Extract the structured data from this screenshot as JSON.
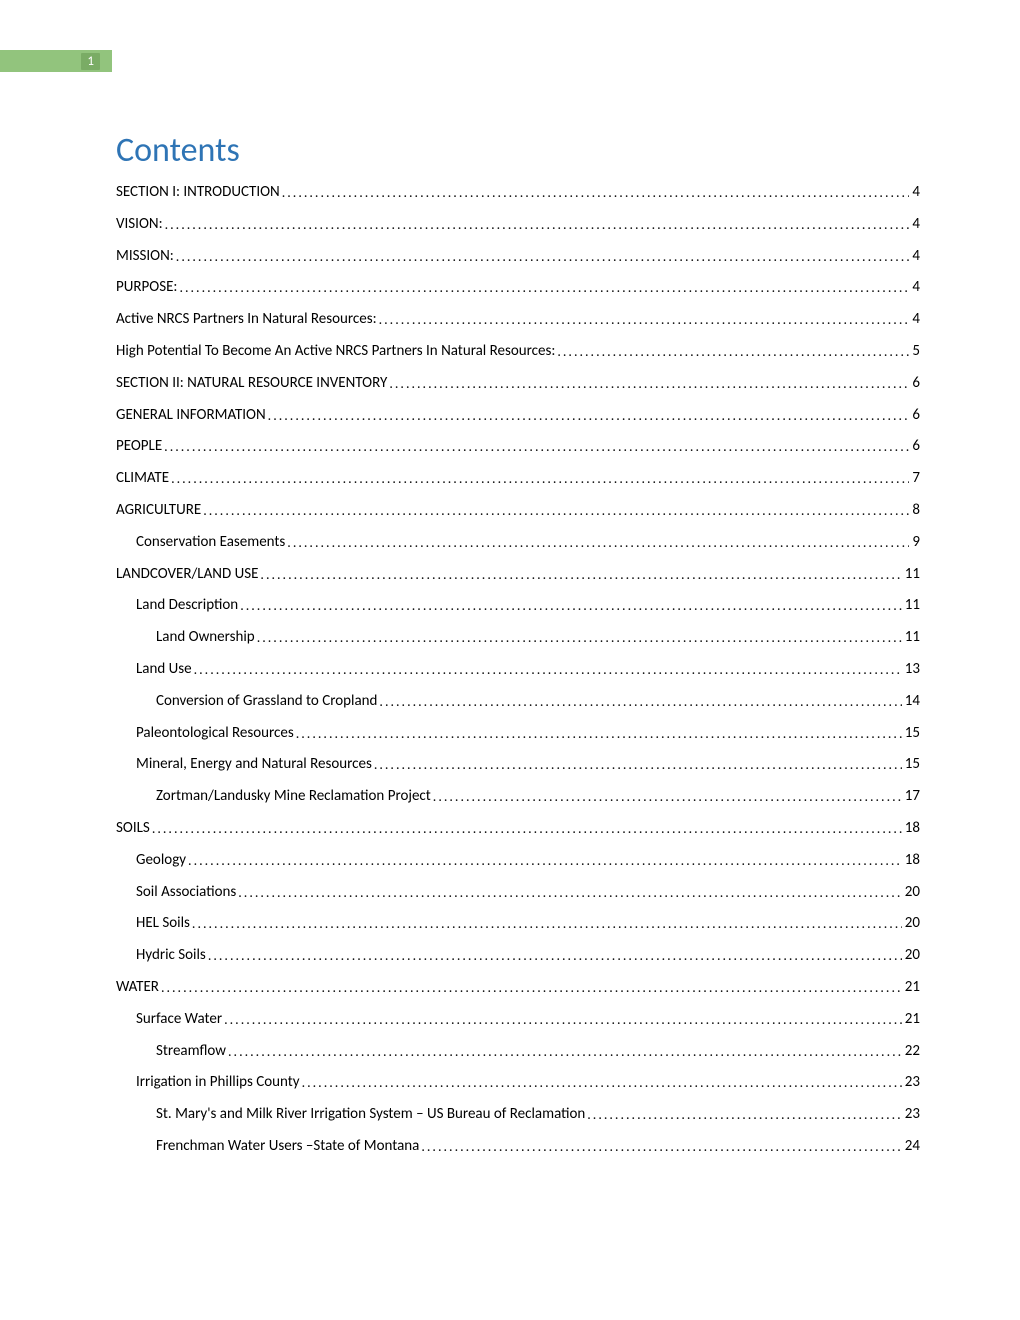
{
  "page_tab": {
    "number": "1"
  },
  "toc": {
    "title": "Contents",
    "entries": [
      {
        "label": "SECTION I:  INTRODUCTION",
        "page": "4",
        "indent": 0
      },
      {
        "label": "VISION:",
        "page": "4",
        "indent": 0
      },
      {
        "label": "MISSION:",
        "page": "4",
        "indent": 0
      },
      {
        "label": "PURPOSE:",
        "page": "4",
        "indent": 0
      },
      {
        "label": "Active NRCS Partners In Natural Resources:",
        "page": "4",
        "indent": 0
      },
      {
        "label": "High Potential To Become An Active NRCS Partners In Natural Resources:",
        "page": "5",
        "indent": 0
      },
      {
        "label": "SECTION II:  NATURAL RESOURCE INVENTORY",
        "page": "6",
        "indent": 0
      },
      {
        "label": "GENERAL INFORMATION",
        "page": "6",
        "indent": 0
      },
      {
        "label": "PEOPLE",
        "page": "6",
        "indent": 0
      },
      {
        "label": "CLIMATE",
        "page": "7",
        "indent": 0
      },
      {
        "label": "AGRICULTURE",
        "page": "8",
        "indent": 0
      },
      {
        "label": "Conservation Easements",
        "page": "9",
        "indent": 1
      },
      {
        "label": "LANDCOVER/LAND USE",
        "page": "11",
        "indent": 0
      },
      {
        "label": "Land Description",
        "page": "11",
        "indent": 1
      },
      {
        "label": "Land Ownership",
        "page": "11",
        "indent": 2
      },
      {
        "label": "Land Use",
        "page": "13",
        "indent": 1
      },
      {
        "label": "Conversion of Grassland to Cropland",
        "page": "14",
        "indent": 2
      },
      {
        "label": "Paleontological Resources",
        "page": "15",
        "indent": 1
      },
      {
        "label": "Mineral, Energy and Natural Resources",
        "page": "15",
        "indent": 1
      },
      {
        "label": "Zortman/Landusky Mine Reclamation Project",
        "page": "17",
        "indent": 2
      },
      {
        "label": "SOILS",
        "page": "18",
        "indent": 0
      },
      {
        "label": "Geology",
        "page": "18",
        "indent": 1
      },
      {
        "label": "Soil Associations",
        "page": "20",
        "indent": 1
      },
      {
        "label": "HEL Soils",
        "page": "20",
        "indent": 1
      },
      {
        "label": "Hydric Soils",
        "page": "20",
        "indent": 1
      },
      {
        "label": "WATER",
        "page": "21",
        "indent": 0
      },
      {
        "label": "Surface Water",
        "page": "21",
        "indent": 1
      },
      {
        "label": "Streamflow",
        "page": "22",
        "indent": 2
      },
      {
        "label": "Irrigation in Phillips County",
        "page": "23",
        "indent": 1
      },
      {
        "label": "St. Mary's and Milk River Irrigation System – US Bureau of Reclamation",
        "page": "23",
        "indent": 2
      },
      {
        "label": "Frenchman Water Users –State of Montana",
        "page": "24",
        "indent": 2
      }
    ]
  },
  "colors": {
    "title_color": "#2e74b5",
    "tab_bg": "#92c47d",
    "tab_inner_bg": "#7aac65",
    "tab_text": "#ffffff",
    "body_text": "#000000",
    "background": "#ffffff"
  },
  "typography": {
    "title_fontsize": 34,
    "entry_fontsize": 15,
    "font_family": "Calibri"
  }
}
